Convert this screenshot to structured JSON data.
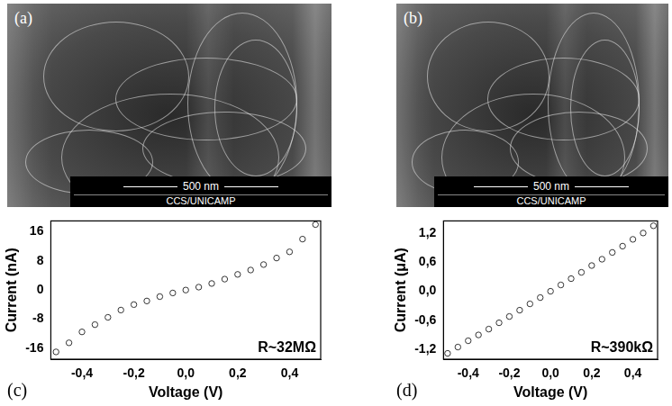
{
  "panels": [
    {
      "label": "(a)",
      "scale_bar": "500 nm",
      "credit": "CCS/UNICAMP"
    },
    {
      "label": "(b)",
      "scale_bar": "500 nm",
      "credit": "CCS/UNICAMP"
    }
  ],
  "chart_data": [
    {
      "type": "scatter",
      "panel": "(c)",
      "x_label": "Voltage (V)",
      "y_label": "Current (nA)",
      "annotation": "R~32MΩ",
      "x": [
        -0.5,
        -0.45,
        -0.4,
        -0.35,
        -0.3,
        -0.25,
        -0.2,
        -0.15,
        -0.1,
        -0.05,
        0,
        0.05,
        0.1,
        0.15,
        0.2,
        0.25,
        0.3,
        0.35,
        0.4,
        0.45,
        0.5
      ],
      "values": [
        -17,
        -14.5,
        -11.5,
        -9.5,
        -7.5,
        -5.5,
        -4,
        -3,
        -1.8,
        -0.8,
        0,
        0.8,
        1.8,
        3,
        4.3,
        5.5,
        7,
        8.8,
        10.5,
        14,
        18
      ],
      "color": "#333333",
      "marker": "circle",
      "xlim": [
        -0.52,
        0.52
      ],
      "xticks": [
        {
          "value": -0.4,
          "label": "-0,4"
        },
        {
          "value": -0.2,
          "label": "-0,2"
        },
        {
          "value": 0,
          "label": "0,0"
        },
        {
          "value": 0.2,
          "label": "0,2"
        },
        {
          "value": 0.4,
          "label": "0,4"
        }
      ],
      "ylim": [
        -19,
        19
      ],
      "yticks": [
        -16,
        -8,
        0,
        8,
        16
      ],
      "grid": false
    },
    {
      "type": "scatter",
      "panel": "(d)",
      "x_label": "Voltage (V)",
      "y_label": "Current (μA)",
      "annotation": "R~390kΩ",
      "x": [
        -0.5,
        -0.45,
        -0.4,
        -0.35,
        -0.3,
        -0.25,
        -0.2,
        -0.15,
        -0.1,
        -0.05,
        0,
        0.05,
        0.1,
        0.15,
        0.2,
        0.25,
        0.3,
        0.35,
        0.4,
        0.45,
        0.5
      ],
      "values": [
        -1.28,
        -1.15,
        -1.02,
        -0.9,
        -0.78,
        -0.65,
        -0.52,
        -0.39,
        -0.26,
        -0.13,
        0,
        0.13,
        0.26,
        0.39,
        0.53,
        0.66,
        0.8,
        0.93,
        1.07,
        1.2,
        1.35
      ],
      "color": "#333333",
      "marker": "circle",
      "xlim": [
        -0.52,
        0.52
      ],
      "xticks": [
        {
          "value": -0.4,
          "label": "-0,4"
        },
        {
          "value": -0.2,
          "label": "-0,2"
        },
        {
          "value": 0,
          "label": "0,0"
        },
        {
          "value": 0.2,
          "label": "0,2"
        },
        {
          "value": 0.4,
          "label": "0,4"
        }
      ],
      "ylim": [
        -1.4,
        1.45
      ],
      "yticks": [
        {
          "value": -1.2,
          "label": "-1,2"
        },
        {
          "value": -0.6,
          "label": "-0,6"
        },
        {
          "value": 0,
          "label": "0,0"
        },
        {
          "value": 0.6,
          "label": "0,6"
        },
        {
          "value": 1.2,
          "label": "1,2"
        }
      ],
      "grid": false
    }
  ]
}
